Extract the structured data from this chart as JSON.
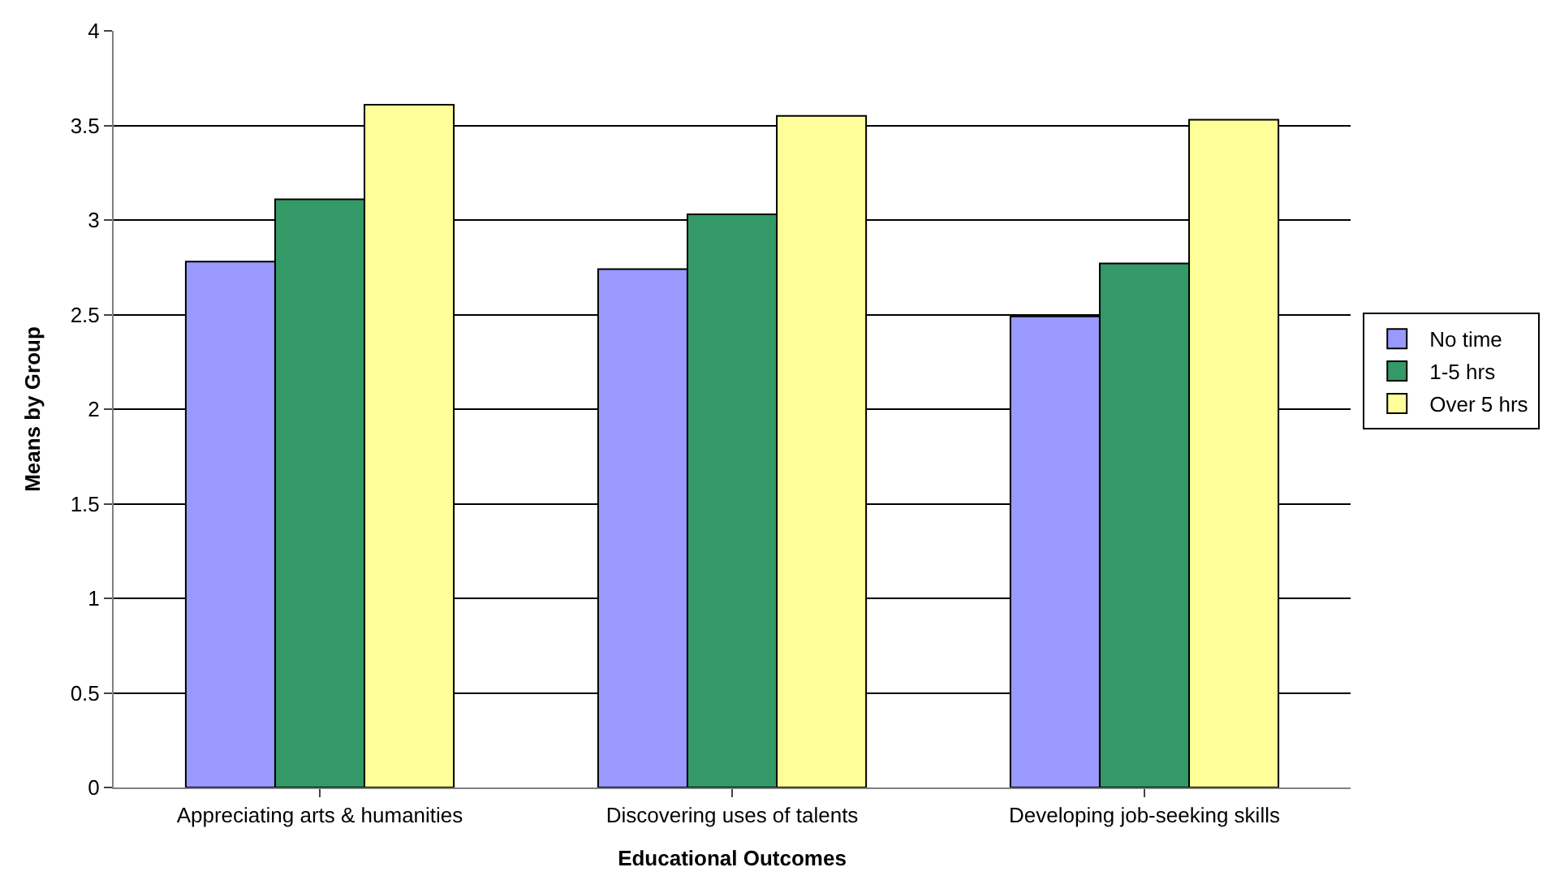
{
  "chart_data": {
    "type": "bar",
    "xlabel": "Educational Outcomes",
    "ylabel": "Means by Group",
    "categories": [
      "Appreciating arts & humanities",
      "Discovering uses of talents",
      "Developing job-seeking skills"
    ],
    "series": [
      {
        "name": "No time",
        "color": "#9999ff",
        "values": [
          2.78,
          2.74,
          2.49
        ]
      },
      {
        "name": "1-5 hrs",
        "color": "#339966",
        "values": [
          3.11,
          3.03,
          2.77
        ]
      },
      {
        "name": "Over 5 hrs",
        "color": "#ffff99",
        "values": [
          3.61,
          3.55,
          3.53
        ]
      }
    ],
    "ylim": [
      0,
      4
    ],
    "yticks": [
      0,
      0.5,
      1,
      1.5,
      2,
      2.5,
      3,
      3.5,
      4
    ],
    "grid": "y",
    "legend": "right"
  }
}
